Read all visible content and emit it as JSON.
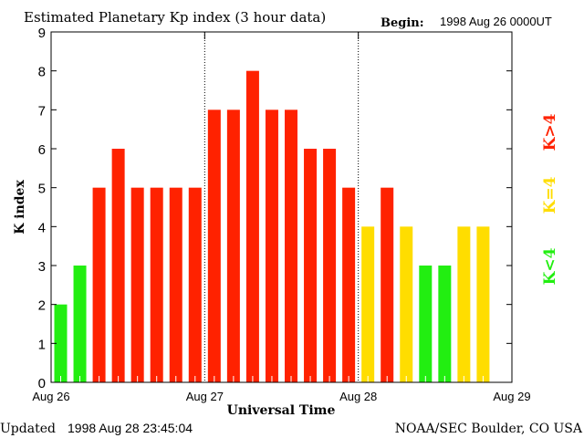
{
  "chart_data": {
    "type": "bar",
    "title": "Estimated Planetary Kp index (3 hour data)",
    "begin_label": "Begin:",
    "begin_value": "1998 Aug 26 0000UT",
    "xlabel": "Universal Time",
    "ylabel": "K index",
    "ylim": [
      0,
      9
    ],
    "yticks": [
      "0",
      "1",
      "2",
      "3",
      "4",
      "5",
      "6",
      "7",
      "8",
      "9"
    ],
    "xticks": [
      "Aug 26",
      "Aug 27",
      "Aug 28",
      "Aug 29"
    ],
    "slots": 24,
    "values": [
      2,
      3,
      5,
      6,
      5,
      5,
      5,
      5,
      7,
      7,
      8,
      7,
      7,
      6,
      6,
      5,
      4,
      5,
      4,
      3,
      3,
      4,
      4
    ],
    "colors": {
      "low": "#22ee11",
      "equal": "#ffdd00",
      "high": "#ff2200"
    },
    "legend": [
      {
        "label": "K<4",
        "color": "#22ee11"
      },
      {
        "label": "K=4",
        "color": "#ffdd00"
      },
      {
        "label": "K>4",
        "color": "#ff2200"
      }
    ]
  },
  "footer": {
    "updated_label": "Updated",
    "updated_value": "1998 Aug 28 23:45:04",
    "source": "NOAA/SEC Boulder, CO USA"
  }
}
